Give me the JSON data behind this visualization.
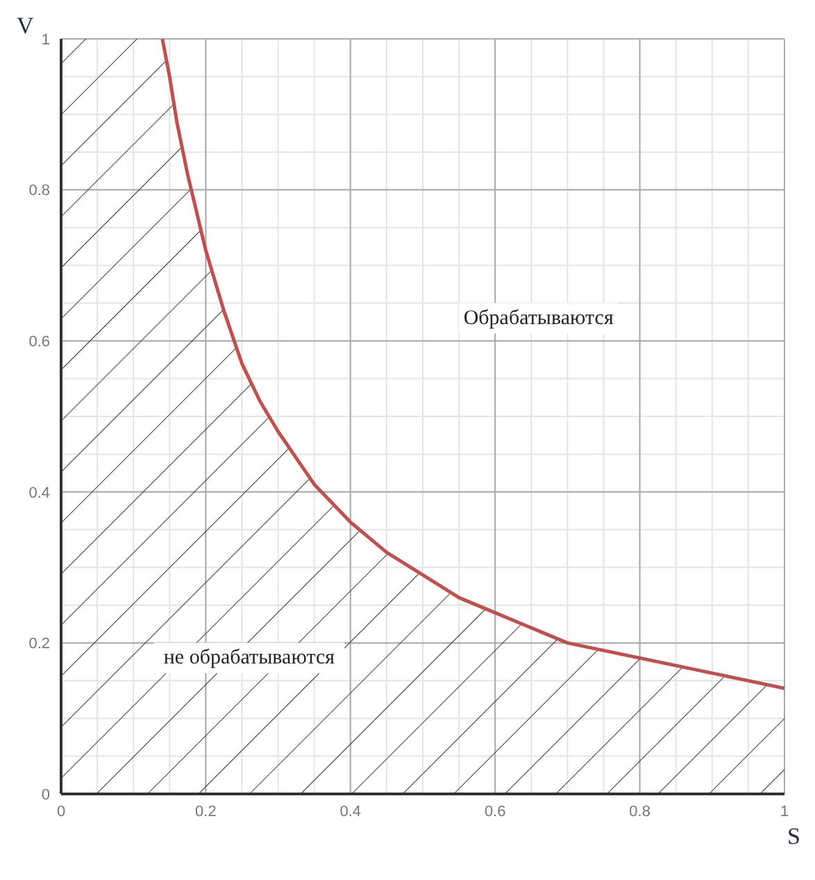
{
  "chart_data": {
    "type": "area",
    "xlabel": "S",
    "ylabel": "V",
    "x": [
      0.14,
      0.15,
      0.16,
      0.175,
      0.2,
      0.225,
      0.25,
      0.275,
      0.3,
      0.35,
      0.4,
      0.45,
      0.5,
      0.55,
      0.6,
      0.7,
      0.8,
      0.9,
      1
    ],
    "series": [
      {
        "color": "#c0504d",
        "values": [
          1,
          0.95,
          0.89,
          0.82,
          0.72,
          0.64,
          0.57,
          0.52,
          0.48,
          0.41,
          0.36,
          0.32,
          0.29,
          0.26,
          0.24,
          0.2,
          0.18,
          0.16,
          0.14
        ]
      }
    ],
    "bands": [
      {
        "axis": "x",
        "from": 0,
        "to": 0.14
      }
    ],
    "xlim": [
      0,
      1
    ],
    "ylim": [
      0,
      1
    ],
    "xticks": [
      0,
      {
        "value": 0.05,
        "label": null
      },
      {
        "value": 0.1,
        "label": null
      },
      {
        "value": 0.15,
        "label": null
      },
      0.2,
      {
        "value": 0.25,
        "label": null
      },
      {
        "value": 0.3,
        "label": null
      },
      {
        "value": 0.35,
        "label": null
      },
      0.4,
      {
        "value": 0.45,
        "label": null
      },
      {
        "value": 0.5,
        "label": null
      },
      {
        "value": 0.55,
        "label": null
      },
      0.6,
      {
        "value": 0.65,
        "label": null
      },
      {
        "value": 0.7,
        "label": null
      },
      {
        "value": 0.75,
        "label": null
      },
      0.8,
      {
        "value": 0.85,
        "label": null
      },
      {
        "value": 0.9,
        "label": null
      },
      {
        "value": 0.95,
        "label": null
      },
      1
    ],
    "yticks": [
      0,
      {
        "value": 0.05,
        "label": null
      },
      {
        "value": 0.1,
        "label": null
      },
      {
        "value": 0.15,
        "label": null
      },
      0.2,
      {
        "value": 0.25,
        "label": null
      },
      {
        "value": 0.3,
        "label": null
      },
      {
        "value": 0.35,
        "label": null
      },
      0.4,
      {
        "value": 0.45,
        "label": null
      },
      {
        "value": 0.5,
        "label": null
      },
      {
        "value": 0.55,
        "label": null
      },
      0.6,
      {
        "value": 0.65,
        "label": null
      },
      {
        "value": 0.7,
        "label": null
      },
      {
        "value": 0.75,
        "label": null
      },
      0.8,
      {
        "value": 0.85,
        "label": null
      },
      {
        "value": 0.9,
        "label": null
      },
      {
        "value": 0.95,
        "label": null
      },
      1
    ],
    "grid": true,
    "legend": false,
    "marker": "none",
    "annotations": [
      "Обрабатываются",
      "не обрабатываются"
    ]
  }
}
